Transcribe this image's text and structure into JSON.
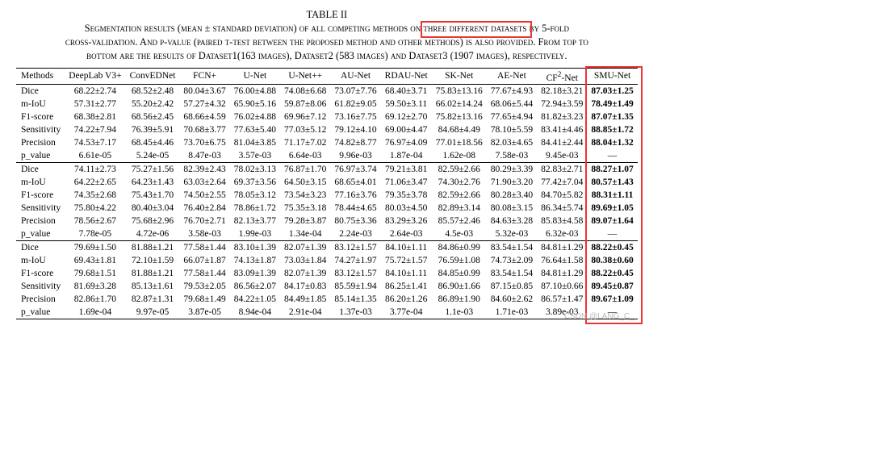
{
  "caption": {
    "label": "TABLE II",
    "text_line1": "Segmentation results (mean ± standard deviation) of all competing methods on three different datasets by 5-fold",
    "text_line2": "cross-validation. And p-value (paired t-test between the proposed method and other methods) is also provided. From top to",
    "text_line3": "bottom are the results of Dataset1(163 images), Dataset2 (583 images) and Dataset3 (1907 images), respectively.",
    "highlight_phrase": "three different datasets"
  },
  "columns": [
    "Methods",
    "DeepLab V3+",
    "ConvEDNet",
    "FCN+",
    "U-Net",
    "U-Net++",
    "AU-Net",
    "RDAU-Net",
    "SK-Net",
    "AE-Net",
    "CF²-Net",
    "SMU-Net"
  ],
  "groups": [
    {
      "rows": [
        {
          "metric": "Dice",
          "cells": [
            "68.22±2.74",
            "68.52±2.48",
            "80.04±3.67",
            "76.00±4.88",
            "74.08±6.68",
            "73.07±7.76",
            "68.40±3.71",
            "75.83±13.16",
            "77.67±4.93",
            "82.18±3.21",
            "87.03±1.25"
          ],
          "bold_last": true
        },
        {
          "metric": "m-IoU",
          "cells": [
            "57.31±2.77",
            "55.20±2.42",
            "57.27±4.32",
            "65.90±5.16",
            "59.87±8.06",
            "61.82±9.05",
            "59.50±3.11",
            "66.02±14.24",
            "68.06±5.44",
            "72.94±3.59",
            "78.49±1.49"
          ],
          "bold_last": true
        },
        {
          "metric": "F1-score",
          "cells": [
            "68.38±2.81",
            "68.56±2.45",
            "68.66±4.59",
            "76.02±4.88",
            "69.96±7.12",
            "73.16±7.75",
            "69.12±2.70",
            "75.82±13.16",
            "77.65±4.94",
            "81.82±3.23",
            "87.07±1.35"
          ],
          "bold_last": true
        },
        {
          "metric": "Sensitivity",
          "cells": [
            "74.22±7.94",
            "76.39±5.91",
            "70.68±3.77",
            "77.63±5.40",
            "77.03±5.12",
            "79.12±4.10",
            "69.00±4.47",
            "84.68±4.49",
            "78.10±5.59",
            "83.41±4.46",
            "88.85±1.72"
          ],
          "bold_last": true
        },
        {
          "metric": "Precision",
          "cells": [
            "74.53±7.17",
            "68.45±4.46",
            "73.70±6.75",
            "81.04±3.85",
            "71.17±7.02",
            "74.82±8.77",
            "76.97±4.09",
            "77.01±18.56",
            "82.03±4.65",
            "84.41±2.44",
            "88.04±1.32"
          ],
          "bold_last": true
        },
        {
          "metric": "p_value",
          "cells": [
            "6.61e-05",
            "5.24e-05",
            "8.47e-03",
            "3.57e-03",
            "6.64e-03",
            "9.96e-03",
            "1.87e-04",
            "1.62e-08",
            "7.58e-03",
            "9.45e-03",
            "—"
          ],
          "bold_last": false
        }
      ]
    },
    {
      "rows": [
        {
          "metric": "Dice",
          "cells": [
            "74.11±2.73",
            "75.27±1.56",
            "82.39±2.43",
            "78.02±3.13",
            "76.87±1.70",
            "76.97±3.74",
            "79.21±3.81",
            "82.59±2.66",
            "80.29±3.39",
            "82.83±2.71",
            "88.27±1.07"
          ],
          "bold_last": true
        },
        {
          "metric": "m-IoU",
          "cells": [
            "64.22±2.65",
            "64.23±1.43",
            "63.03±2.64",
            "69.37±3.56",
            "64.50±3.15",
            "68.65±4.01",
            "71.06±3.47",
            "74.30±2.76",
            "71.90±3.20",
            "77.42±7.04",
            "80.57±1.43"
          ],
          "bold_last": true
        },
        {
          "metric": "F1-score",
          "cells": [
            "74.35±2.68",
            "75.43±1.70",
            "74.50±2.55",
            "78.05±3.12",
            "73.54±3.23",
            "77.16±3.76",
            "79.35±3.78",
            "82.59±2.66",
            "80.28±3.40",
            "84.70±5.82",
            "88.31±1.11"
          ],
          "bold_last": true
        },
        {
          "metric": "Sensitivity",
          "cells": [
            "75.80±4.22",
            "80.40±3.04",
            "76.40±2.84",
            "78.86±1.72",
            "75.35±3.18",
            "78.44±4.65",
            "80.03±4.50",
            "82.89±3.14",
            "80.08±3.15",
            "86.34±5.74",
            "89.69±1.05"
          ],
          "bold_last": true
        },
        {
          "metric": "Precision",
          "cells": [
            "78.56±2.67",
            "75.68±2.96",
            "76.70±2.71",
            "82.13±3.77",
            "79.28±3.87",
            "80.75±3.36",
            "83.29±3.26",
            "85.57±2.46",
            "84.63±3.28",
            "85.83±4.58",
            "89.07±1.64"
          ],
          "bold_last": true
        },
        {
          "metric": "p_value",
          "cells": [
            "7.78e-05",
            "4.72e-06",
            "3.58e-03",
            "1.99e-03",
            "1.34e-04",
            "2.24e-03",
            "2.64e-03",
            "4.5e-03",
            "5.32e-03",
            "6.32e-03",
            "—"
          ],
          "bold_last": false
        }
      ]
    },
    {
      "rows": [
        {
          "metric": "Dice",
          "cells": [
            "79.69±1.50",
            "81.88±1.21",
            "77.58±1.44",
            "83.10±1.39",
            "82.07±1.39",
            "83.12±1.57",
            "84.10±1.11",
            "84.86±0.99",
            "83.54±1.54",
            "84.81±1.29",
            "88.22±0.45"
          ],
          "bold_last": true
        },
        {
          "metric": "m-IoU",
          "cells": [
            "69.43±1.81",
            "72.10±1.59",
            "66.07±1.87",
            "74.13±1.87",
            "73.03±1.84",
            "74.27±1.97",
            "75.72±1.57",
            "76.59±1.08",
            "74.73±2.09",
            "76.64±1.58",
            "80.38±0.60"
          ],
          "bold_last": true
        },
        {
          "metric": "F1-score",
          "cells": [
            "79.68±1.51",
            "81.88±1.21",
            "77.58±1.44",
            "83.09±1.39",
            "82.07±1.39",
            "83.12±1.57",
            "84.10±1.11",
            "84.85±0.99",
            "83.54±1.54",
            "84.81±1.29",
            "88.22±0.45"
          ],
          "bold_last": true
        },
        {
          "metric": "Sensitivity",
          "cells": [
            "81.69±3.28",
            "85.13±1.61",
            "79.53±2.05",
            "86.56±2.07",
            "84.17±0.83",
            "85.59±1.94",
            "86.25±1.41",
            "86.90±1.66",
            "87.15±0.85",
            "87.10±0.66",
            "89.45±0.87"
          ],
          "bold_last": true
        },
        {
          "metric": "Precision",
          "cells": [
            "82.86±1.70",
            "82.87±1.31",
            "79.68±1.49",
            "84.22±1.05",
            "84.49±1.85",
            "85.14±1.35",
            "86.20±1.26",
            "86.89±1.90",
            "84.60±2.62",
            "86.57±1.47",
            "89.67±1.09"
          ],
          "bold_last": true
        },
        {
          "metric": "p_value",
          "cells": [
            "1.69e-04",
            "9.97e-05",
            "3.87e-05",
            "8.94e-04",
            "2.91e-04",
            "1.37e-03",
            "3.77e-04",
            "1.1e-03",
            "1.71e-03",
            "3.89e-03",
            "—"
          ],
          "bold_last": false
        }
      ]
    }
  ],
  "watermark": "CSDN @LANG_C_"
}
